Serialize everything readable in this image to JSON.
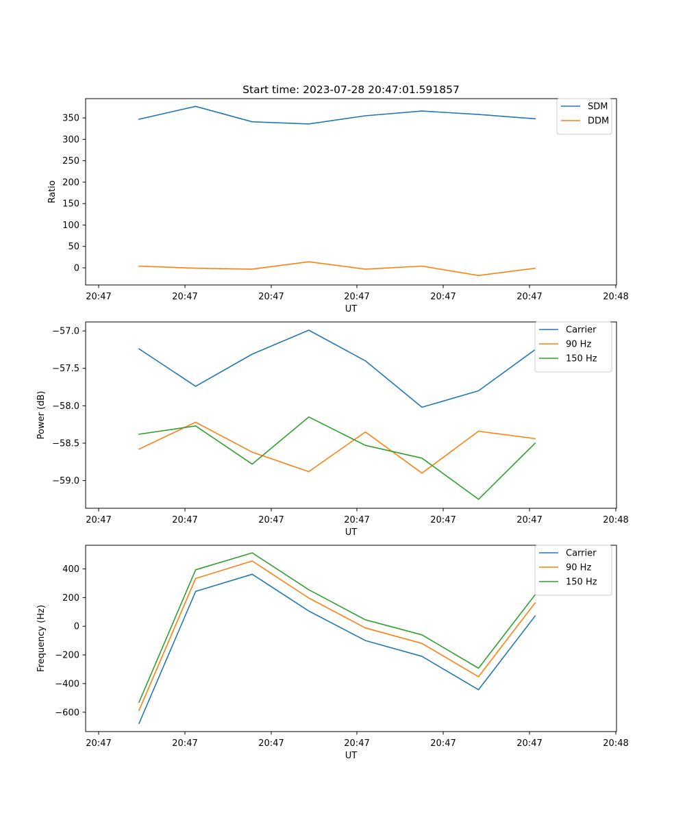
{
  "figure_title": "Start time: 2023-07-28 20:47:01.591857",
  "chart_data": [
    {
      "type": "line",
      "title": "Start time: 2023-07-28 20:47:01.591857",
      "xlabel": "UT",
      "ylabel": "Ratio",
      "x_tick_labels": [
        "20:47",
        "20:47",
        "20:47",
        "20:47",
        "20:47",
        "20:47",
        "20:48"
      ],
      "x_points": 8,
      "ylim": [
        -40,
        395
      ],
      "y_ticks": [
        0,
        50,
        100,
        150,
        200,
        250,
        300,
        350
      ],
      "legend_position": "top-right",
      "series": [
        {
          "name": "SDM",
          "color": "#1f77b4",
          "values": [
            347,
            377,
            341,
            336,
            355,
            366,
            358,
            348
          ]
        },
        {
          "name": "DDM",
          "color": "#ff7f0e",
          "values": [
            4,
            -1,
            -3,
            14,
            -3,
            4,
            -18,
            -1
          ]
        }
      ]
    },
    {
      "type": "line",
      "title": "",
      "xlabel": "UT",
      "ylabel": "Power (dB)",
      "x_tick_labels": [
        "20:47",
        "20:47",
        "20:47",
        "20:47",
        "20:47",
        "20:47",
        "20:48"
      ],
      "x_points": 8,
      "ylim": [
        -59.37,
        -56.88
      ],
      "y_ticks": [
        -59.0,
        -58.5,
        -58.0,
        -57.5,
        -57.0
      ],
      "y_tick_labels": [
        "−59.0",
        "−58.5",
        "−58.0",
        "−57.5",
        "−57.0"
      ],
      "legend_position": "top-right",
      "series": [
        {
          "name": "Carrier",
          "color": "#1f77b4",
          "values": [
            -57.24,
            -57.74,
            -57.31,
            -56.99,
            -57.4,
            -58.02,
            -57.8,
            -57.25
          ]
        },
        {
          "name": "90 Hz",
          "color": "#ff7f0e",
          "values": [
            -58.58,
            -58.22,
            -58.62,
            -58.88,
            -58.35,
            -58.9,
            -58.34,
            -58.44
          ]
        },
        {
          "name": "150 Hz",
          "color": "#2ca02c",
          "values": [
            -58.38,
            -58.27,
            -58.78,
            -58.15,
            -58.53,
            -58.7,
            -59.25,
            -58.5
          ]
        }
      ]
    },
    {
      "type": "line",
      "title": "",
      "xlabel": "UT",
      "ylabel": "Frequency (Hz)",
      "x_tick_labels": [
        "20:47",
        "20:47",
        "20:47",
        "20:47",
        "20:47",
        "20:47",
        "20:48"
      ],
      "x_points": 8,
      "ylim": [
        -735,
        565
      ],
      "y_ticks": [
        -600,
        -400,
        -200,
        0,
        200,
        400
      ],
      "y_tick_labels": [
        "−600",
        "−400",
        "−200",
        "0",
        "200",
        "400"
      ],
      "legend_position": "top-right",
      "series": [
        {
          "name": "Carrier",
          "color": "#1f77b4",
          "values": [
            -678,
            243,
            363,
            106,
            -100,
            -210,
            -443,
            72
          ]
        },
        {
          "name": "90 Hz",
          "color": "#ff7f0e",
          "values": [
            -587,
            333,
            455,
            197,
            -12,
            -120,
            -352,
            163
          ]
        },
        {
          "name": "150 Hz",
          "color": "#2ca02c",
          "values": [
            -530,
            394,
            512,
            255,
            45,
            -60,
            -293,
            220
          ]
        }
      ]
    }
  ]
}
